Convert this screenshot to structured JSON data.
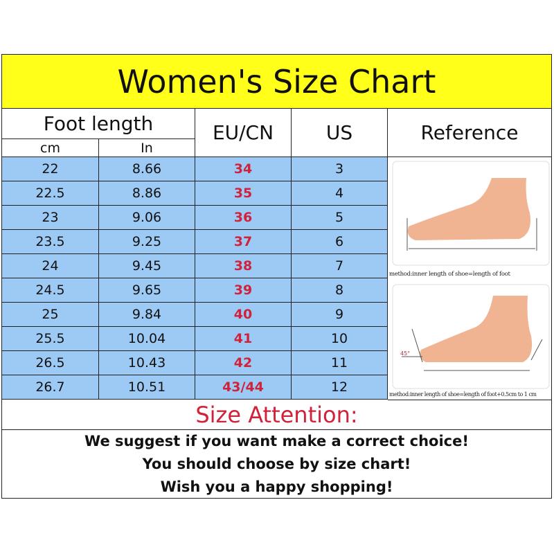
{
  "title": "Women's Size Chart",
  "headers": {
    "foot_length": "Foot length",
    "cm": "cm",
    "in": "In",
    "eu_cn": "EU/CN",
    "us": "US",
    "reference": "Reference"
  },
  "rows": [
    {
      "cm": "22",
      "in": "8.66",
      "eu": "34",
      "us": "3"
    },
    {
      "cm": "22.5",
      "in": "8.86",
      "eu": "35",
      "us": "4"
    },
    {
      "cm": "23",
      "in": "9.06",
      "eu": "36",
      "us": "5"
    },
    {
      "cm": "23.5",
      "in": "9.25",
      "eu": "37",
      "us": "6"
    },
    {
      "cm": "24",
      "in": "9.45",
      "eu": "38",
      "us": "7"
    },
    {
      "cm": "24.5",
      "in": "9.65",
      "eu": "39",
      "us": "8"
    },
    {
      "cm": "25",
      "in": "9.84",
      "eu": "40",
      "us": "9"
    },
    {
      "cm": "25.5",
      "in": "10.04",
      "eu": "41",
      "us": "10"
    },
    {
      "cm": "26.5",
      "in": "10.43",
      "eu": "42",
      "us": "11"
    },
    {
      "cm": "26.7",
      "in": "10.51",
      "eu": "43/44",
      "us": "12"
    }
  ],
  "reference": {
    "caption1": "method:inner length of shoe=length of foot",
    "caption2": "method:inner length of shoe=length of foot+0.5cm to 1 cm",
    "angle_label": "45°"
  },
  "attention": {
    "title": "Size Attention:",
    "lines": [
      "We suggest if you want make a correct choice!",
      "You should choose by size chart!",
      "Wish you a happy shopping!"
    ]
  },
  "colors": {
    "title_bg": "#ffff19",
    "row_bg": "#9ccaf5",
    "eu_text": "#d0223a",
    "attention_text": "#d0223a"
  }
}
